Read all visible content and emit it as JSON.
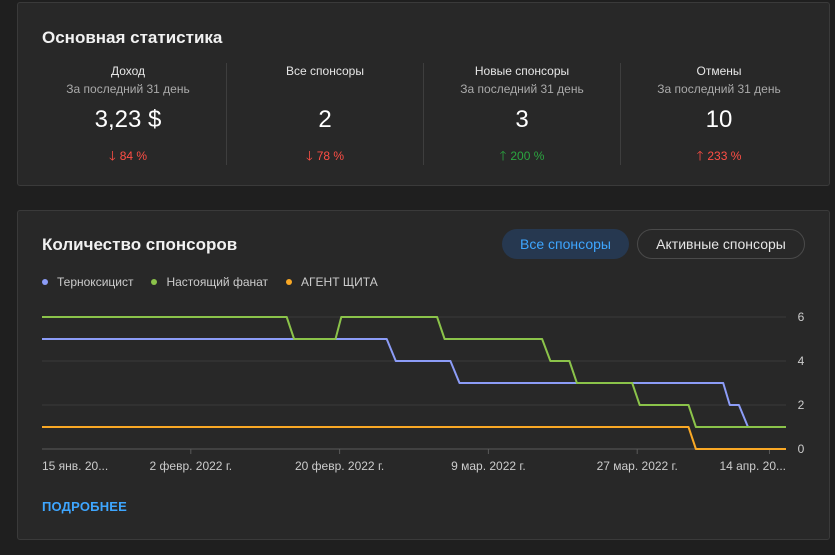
{
  "stats": {
    "title": "Основная статистика",
    "metrics": [
      {
        "label": "Доход",
        "sub": "За последний 31 день",
        "value": "3,23 $",
        "change": "84 %",
        "direction": "down",
        "color": "#ff4e45"
      },
      {
        "label": "Все спонсоры",
        "sub": "",
        "value": "2",
        "change": "78 %",
        "direction": "down",
        "color": "#ff4e45"
      },
      {
        "label": "Новые спонсоры",
        "sub": "За последний 31 день",
        "value": "3",
        "change": "200 %",
        "direction": "up",
        "color": "#2ba640"
      },
      {
        "label": "Отмены",
        "sub": "За последний 31 день",
        "value": "10",
        "change": "233 %",
        "direction": "up",
        "color": "#ff4e45"
      }
    ]
  },
  "chart_card": {
    "title": "Количество спонсоров",
    "toggle_all": "Все спонсоры",
    "toggle_active": "Активные спонсоры",
    "more_link": "ПОДРОБНЕЕ"
  },
  "chart_data": {
    "type": "line",
    "title": "Количество спонсоров",
    "x_tick_labels": [
      "15 янв. 20...",
      "2 февр. 2022 г.",
      "20 февр. 2022 г.",
      "9 мар. 2022 г.",
      "27 мар. 2022 г.",
      "14 апр. 20..."
    ],
    "x_range_days": [
      0,
      90
    ],
    "x_tick_days": [
      0,
      18,
      36,
      54,
      72,
      88
    ],
    "y_ticks": [
      "0",
      "2",
      "4",
      "6"
    ],
    "ylim": [
      0,
      6
    ],
    "series": [
      {
        "name": "Терноксицист",
        "color": "#8c9cf7",
        "points": [
          [
            0,
            5
          ],
          [
            41.7,
            5
          ],
          [
            42.8,
            4
          ],
          [
            49.4,
            4
          ],
          [
            50.5,
            3
          ],
          [
            82.4,
            3
          ],
          [
            83.2,
            2
          ],
          [
            84.3,
            2
          ],
          [
            85.4,
            1
          ],
          [
            90,
            1
          ]
        ]
      },
      {
        "name": "Настоящий фанат",
        "color": "#8bc34a",
        "points": [
          [
            0,
            6
          ],
          [
            29.6,
            6
          ],
          [
            30.5,
            5
          ],
          [
            35.5,
            5
          ],
          [
            36.2,
            6
          ],
          [
            47.8,
            6
          ],
          [
            48.7,
            5
          ],
          [
            60.5,
            5
          ],
          [
            61.5,
            4
          ],
          [
            63.8,
            4
          ],
          [
            64.7,
            3
          ],
          [
            71.4,
            3
          ],
          [
            72.3,
            2
          ],
          [
            78.2,
            2
          ],
          [
            79.1,
            1
          ],
          [
            90,
            1
          ]
        ]
      },
      {
        "name": "АГЕНТ ЩИТА",
        "color": "#f9a825",
        "points": [
          [
            0,
            1
          ],
          [
            78.2,
            1
          ],
          [
            79.1,
            0
          ],
          [
            90,
            0
          ]
        ]
      }
    ]
  }
}
